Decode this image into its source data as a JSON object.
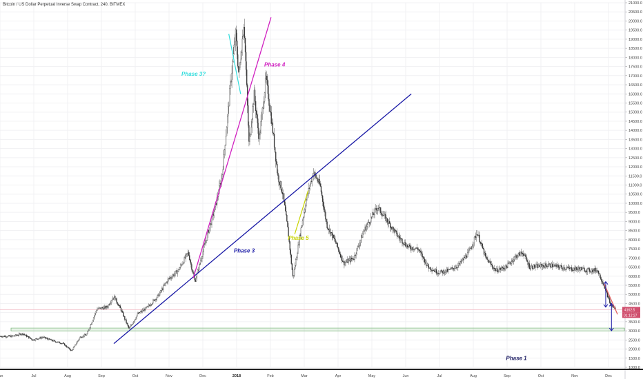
{
  "chart_data": {
    "type": "candlestick",
    "title": "Bitcoin / US Dollar Perpetual Inverse Swap Contract, 240, BITMEX",
    "ylim": [
      1000,
      21000
    ],
    "y_ticks": [
      "1000.0",
      "1500.0",
      "2000.0",
      "2500.0",
      "3000.0",
      "3500.0",
      "4000.0",
      "4500.0",
      "5000.0",
      "5500.0",
      "6000.0",
      "6500.0",
      "7000.0",
      "7500.0",
      "8000.0",
      "8500.0",
      "9000.0",
      "9500.0",
      "10000.0",
      "10500.0",
      "11000.0",
      "11500.0",
      "12000.0",
      "12500.0",
      "13000.0",
      "13500.0",
      "14000.0",
      "14500.0",
      "15000.0",
      "15500.0",
      "16000.0",
      "16500.0",
      "17000.0",
      "17500.0",
      "18000.0",
      "18500.0",
      "19000.0",
      "19500.0",
      "20000.0",
      "20500.0",
      "21000.0"
    ],
    "x_ticks": [
      "Jun",
      "Jul",
      "Aug",
      "Sep",
      "Oct",
      "Nov",
      "Dec",
      "2018",
      "Feb",
      "Mar",
      "Apr",
      "May",
      "Jun",
      "Jul",
      "Aug",
      "Sep",
      "Oct",
      "Nov",
      "Dec"
    ],
    "x_tick_bold_index": 7,
    "price_series": [
      {
        "month": 0.0,
        "price": 2700
      },
      {
        "month": 0.3,
        "price": 2850
      },
      {
        "month": 0.6,
        "price": 2500
      },
      {
        "month": 0.9,
        "price": 2650
      },
      {
        "month": 1.2,
        "price": 2450
      },
      {
        "month": 1.5,
        "price": 2300
      },
      {
        "month": 1.75,
        "price": 1900
      },
      {
        "month": 2.0,
        "price": 2650
      },
      {
        "month": 2.2,
        "price": 2800
      },
      {
        "month": 2.5,
        "price": 4200
      },
      {
        "month": 2.8,
        "price": 4300
      },
      {
        "month": 3.0,
        "price": 4900
      },
      {
        "month": 3.2,
        "price": 4200
      },
      {
        "month": 3.45,
        "price": 3100
      },
      {
        "month": 3.7,
        "price": 3900
      },
      {
        "month": 4.0,
        "price": 4300
      },
      {
        "month": 4.3,
        "price": 4900
      },
      {
        "month": 4.6,
        "price": 5800
      },
      {
        "month": 4.9,
        "price": 6300
      },
      {
        "month": 5.2,
        "price": 7300
      },
      {
        "month": 5.4,
        "price": 5700
      },
      {
        "month": 5.7,
        "price": 7800
      },
      {
        "month": 6.0,
        "price": 9800
      },
      {
        "month": 6.2,
        "price": 11500
      },
      {
        "month": 6.45,
        "price": 16500
      },
      {
        "month": 6.6,
        "price": 19300
      },
      {
        "month": 6.7,
        "price": 17000
      },
      {
        "month": 6.85,
        "price": 20000
      },
      {
        "month": 7.0,
        "price": 13200
      },
      {
        "month": 7.15,
        "price": 16000
      },
      {
        "month": 7.3,
        "price": 13500
      },
      {
        "month": 7.5,
        "price": 16900
      },
      {
        "month": 7.7,
        "price": 14000
      },
      {
        "month": 7.85,
        "price": 11500
      },
      {
        "month": 8.0,
        "price": 10500
      },
      {
        "month": 8.15,
        "price": 8500
      },
      {
        "month": 8.3,
        "price": 5900
      },
      {
        "month": 8.5,
        "price": 8200
      },
      {
        "month": 8.7,
        "price": 10300
      },
      {
        "month": 8.9,
        "price": 11700
      },
      {
        "month": 9.1,
        "price": 11000
      },
      {
        "month": 9.3,
        "price": 8800
      },
      {
        "month": 9.55,
        "price": 7900
      },
      {
        "month": 9.8,
        "price": 6700
      },
      {
        "month": 10.1,
        "price": 7000
      },
      {
        "month": 10.4,
        "price": 8500
      },
      {
        "month": 10.8,
        "price": 9800
      },
      {
        "month": 11.1,
        "price": 9000
      },
      {
        "month": 11.4,
        "price": 8200
      },
      {
        "month": 11.7,
        "price": 7600
      },
      {
        "month": 12.0,
        "price": 7500
      },
      {
        "month": 12.3,
        "price": 6500
      },
      {
        "month": 12.6,
        "price": 6200
      },
      {
        "month": 12.9,
        "price": 6300
      },
      {
        "month": 13.2,
        "price": 6600
      },
      {
        "month": 13.5,
        "price": 7300
      },
      {
        "month": 13.75,
        "price": 8400
      },
      {
        "month": 14.0,
        "price": 7000
      },
      {
        "month": 14.3,
        "price": 6300
      },
      {
        "month": 14.6,
        "price": 6500
      },
      {
        "month": 14.9,
        "price": 7100
      },
      {
        "month": 15.1,
        "price": 7300
      },
      {
        "month": 15.3,
        "price": 6500
      },
      {
        "month": 15.6,
        "price": 6550
      },
      {
        "month": 15.9,
        "price": 6600
      },
      {
        "month": 16.2,
        "price": 6500
      },
      {
        "month": 16.5,
        "price": 6400
      },
      {
        "month": 16.8,
        "price": 6400
      },
      {
        "month": 17.1,
        "price": 6300
      },
      {
        "month": 17.3,
        "price": 6350
      },
      {
        "month": 17.5,
        "price": 5500
      },
      {
        "month": 17.7,
        "price": 4400
      },
      {
        "month": 17.85,
        "price": 4200
      }
    ],
    "trendlines": [
      {
        "name": "Phase 3",
        "color": "#1a1aa6",
        "from": {
          "month": 3.0,
          "price": 2300
        },
        "to": {
          "month": 11.8,
          "price": 16000
        }
      },
      {
        "name": "Phase 4",
        "color": "#d020c0",
        "from": {
          "month": 5.35,
          "price": 5900
        },
        "to": {
          "month": 7.65,
          "price": 20200
        }
      },
      {
        "name": "cyan",
        "color": "#33dddd",
        "from": {
          "month": 6.4,
          "price": 19300
        },
        "to": {
          "month": 6.75,
          "price": 16000
        }
      },
      {
        "name": "yellow",
        "color": "#c8d400",
        "from": {
          "month": 8.35,
          "price": 8300
        },
        "to": {
          "month": 8.75,
          "price": 10700
        }
      },
      {
        "name": "red",
        "color": "#e06060",
        "from": {
          "month": 17.5,
          "price": 5600
        },
        "to": {
          "month": 17.9,
          "price": 3900
        }
      }
    ],
    "support_zone": {
      "low": 3000,
      "high": 3150,
      "color": "#7ab77a"
    },
    "annotations": [
      {
        "text": "Phase 3?",
        "color": "#33dddd",
        "month": 5.0,
        "price": 17000
      },
      {
        "text": "Phase 4",
        "color": "#d020c0",
        "month": 7.45,
        "price": 17500
      },
      {
        "text": "Phase 3",
        "color": "#1a1aa6",
        "month": 6.55,
        "price": 7300
      },
      {
        "text": "Phase 5",
        "color": "#c8d400",
        "month": 8.15,
        "price": 8000
      },
      {
        "text": "Phase 1",
        "color": "#222266",
        "month": 14.6,
        "price": 1400
      }
    ],
    "current_price": {
      "label": "4162.5",
      "countdown": "01:12:27",
      "value": 4162.5,
      "color": "#d0506e"
    },
    "arrows_color": "#1a1aa6"
  }
}
